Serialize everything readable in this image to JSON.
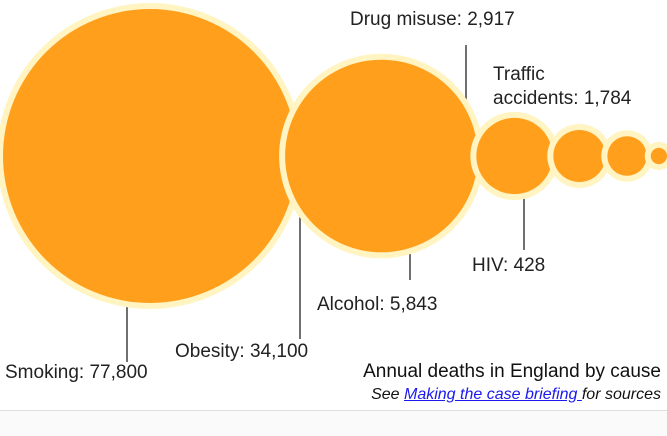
{
  "chart_data": {
    "type": "bubble",
    "title": "Annual deaths in England by cause",
    "unit": "deaths",
    "series": [
      {
        "name": "Smoking",
        "label": "Smoking: 77,800",
        "value": 77800
      },
      {
        "name": "Obesity",
        "label": "Obesity: 34,100",
        "value": 34100
      },
      {
        "name": "Alcohol",
        "label": "Alcohol: 5,843",
        "value": 5843
      },
      {
        "name": "Drug misuse",
        "label": "Drug misuse: 2,917",
        "value": 2917
      },
      {
        "name": "Traffic accidents",
        "label_lines": [
          "Traffic",
          "accidents: 1,784"
        ],
        "value": 1784
      },
      {
        "name": "HIV",
        "label": "HIV: 428",
        "value": 428
      }
    ],
    "colors": {
      "fill": "#ff9f1c",
      "halo": "#fff4c2",
      "leader": "#333333"
    }
  },
  "caption": {
    "title": "Annual deaths in England by cause",
    "source_prefix": "See ",
    "source_link": "Making the case briefing ",
    "source_suffix": "for sources"
  }
}
